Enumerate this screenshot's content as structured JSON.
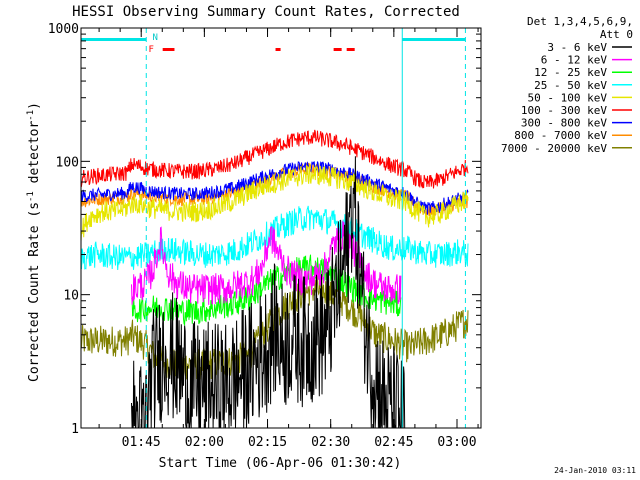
{
  "chart_data": {
    "type": "line",
    "title": "HESSI Observing Summary Count Rates, Corrected",
    "xlabel": "Start Time (06-Apr-06 01:30:42)",
    "ylabel_main": "Corrected Count Rate (s",
    "ylabel_sup1": "-1",
    "ylabel_mid": " detector",
    "ylabel_sup2": "-1",
    "ylabel_end": ")",
    "yscale": "log",
    "ylim": [
      1,
      1000
    ],
    "xlim_minutes": [
      0,
      95
    ],
    "yticks": [
      {
        "value": 1,
        "label": "1"
      },
      {
        "value": 10,
        "label": "10"
      },
      {
        "value": 100,
        "label": "100"
      },
      {
        "value": 1000,
        "label": "1000"
      }
    ],
    "xticks": [
      {
        "min": 14.3,
        "label": "01:45"
      },
      {
        "min": 29.3,
        "label": "02:00"
      },
      {
        "min": 44.3,
        "label": "02:15"
      },
      {
        "min": 59.3,
        "label": "02:30"
      },
      {
        "min": 74.3,
        "label": "02:45"
      },
      {
        "min": 89.3,
        "label": "03:00"
      }
    ],
    "legend_header": [
      "Det 1,3,4,5,6,9,",
      "Att 0"
    ],
    "flag_labels": {
      "night": "N",
      "flare": "F"
    },
    "night_intervals": [
      [
        0,
        15.5
      ],
      [
        76.3,
        91.3
      ]
    ],
    "flare_intervals": [
      [
        19.4,
        22.2
      ],
      [
        46.2,
        47.4
      ],
      [
        60.0,
        61.9
      ],
      [
        63.1,
        65.0
      ]
    ],
    "date_stamp": "24-Jan-2010 03:11",
    "series": [
      {
        "name": "3 - 6 keV",
        "color": "#000000",
        "points": [
          [
            12,
            1.2
          ],
          [
            15,
            1
          ],
          [
            17,
            2.5
          ],
          [
            20,
            4
          ],
          [
            23,
            3
          ],
          [
            26,
            2
          ],
          [
            30,
            2
          ],
          [
            34,
            2
          ],
          [
            38,
            2.5
          ],
          [
            41,
            3
          ],
          [
            44,
            4
          ],
          [
            46,
            5.5
          ],
          [
            48,
            4
          ],
          [
            50,
            5
          ],
          [
            52,
            4.5
          ],
          [
            54,
            4.5
          ],
          [
            56,
            5
          ],
          [
            58,
            5
          ],
          [
            60,
            8
          ],
          [
            62,
            15
          ],
          [
            63.5,
            25
          ],
          [
            64.5,
            55
          ],
          [
            65.5,
            28
          ],
          [
            67,
            8
          ],
          [
            69,
            3
          ],
          [
            72,
            1.6
          ],
          [
            75,
            1.3
          ],
          [
            77,
            1
          ]
        ]
      },
      {
        "name": "6 - 12 keV",
        "color": "#ff00ff",
        "points": [
          [
            12,
            11
          ],
          [
            15,
            12
          ],
          [
            17,
            15
          ],
          [
            18,
            20
          ],
          [
            19,
            25
          ],
          [
            20,
            18
          ],
          [
            21,
            14
          ],
          [
            23,
            12
          ],
          [
            26,
            11
          ],
          [
            30,
            11
          ],
          [
            34,
            11
          ],
          [
            38,
            12
          ],
          [
            41,
            13
          ],
          [
            43,
            16
          ],
          [
            45,
            28
          ],
          [
            47,
            20
          ],
          [
            49,
            15
          ],
          [
            52,
            13
          ],
          [
            55,
            13
          ],
          [
            58,
            16
          ],
          [
            60,
            24
          ],
          [
            62,
            28
          ],
          [
            64,
            24
          ],
          [
            66,
            18
          ],
          [
            68,
            14
          ],
          [
            70,
            12
          ],
          [
            73,
            11
          ],
          [
            76,
            11
          ]
        ]
      },
      {
        "name": "12 - 25 keV",
        "color": "#00ff00",
        "points": [
          [
            12,
            7.5
          ],
          [
            16,
            8
          ],
          [
            20,
            8
          ],
          [
            24,
            7.5
          ],
          [
            28,
            7.5
          ],
          [
            32,
            8
          ],
          [
            36,
            8.5
          ],
          [
            40,
            9.5
          ],
          [
            44,
            12
          ],
          [
            48,
            14
          ],
          [
            52,
            15.5
          ],
          [
            55,
            16
          ],
          [
            58,
            15
          ],
          [
            61,
            13.5
          ],
          [
            64,
            11.5
          ],
          [
            67,
            10
          ],
          [
            71,
            9
          ],
          [
            75,
            8.5
          ],
          [
            76,
            8
          ]
        ]
      },
      {
        "name": "25 - 50 keV",
        "color": "#00ffff",
        "points": [
          [
            0,
            19
          ],
          [
            4,
            20
          ],
          [
            8,
            19
          ],
          [
            12,
            19
          ],
          [
            16,
            20
          ],
          [
            20,
            22
          ],
          [
            24,
            21
          ],
          [
            28,
            20
          ],
          [
            32,
            20
          ],
          [
            36,
            21
          ],
          [
            40,
            24
          ],
          [
            44,
            28
          ],
          [
            48,
            33
          ],
          [
            52,
            37
          ],
          [
            55,
            38
          ],
          [
            58,
            36
          ],
          [
            62,
            33
          ],
          [
            66,
            29
          ],
          [
            70,
            25
          ],
          [
            74,
            22
          ],
          [
            78,
            22
          ],
          [
            82,
            20
          ],
          [
            86,
            20
          ],
          [
            90,
            21
          ],
          [
            92,
            20
          ]
        ]
      },
      {
        "name": "50 - 100 keV",
        "color": "#e6e600",
        "points": [
          [
            0,
            30
          ],
          [
            2,
            38
          ],
          [
            5,
            42
          ],
          [
            8,
            42
          ],
          [
            11,
            45
          ],
          [
            12,
            48
          ],
          [
            14,
            48
          ],
          [
            16,
            45
          ],
          [
            20,
            43
          ],
          [
            24,
            42
          ],
          [
            28,
            42
          ],
          [
            32,
            45
          ],
          [
            36,
            50
          ],
          [
            40,
            58
          ],
          [
            44,
            66
          ],
          [
            48,
            72
          ],
          [
            52,
            78
          ],
          [
            55,
            80
          ],
          [
            58,
            78
          ],
          [
            62,
            73
          ],
          [
            66,
            66
          ],
          [
            70,
            58
          ],
          [
            74,
            52
          ],
          [
            77,
            50
          ],
          [
            80,
            42
          ],
          [
            82,
            38
          ],
          [
            85,
            40
          ],
          [
            88,
            45
          ],
          [
            92,
            52
          ]
        ]
      },
      {
        "name": "100 - 300 keV",
        "color": "#ff0000",
        "points": [
          [
            0,
            75
          ],
          [
            4,
            78
          ],
          [
            8,
            80
          ],
          [
            11,
            82
          ],
          [
            12,
            95
          ],
          [
            14,
            92
          ],
          [
            16,
            88
          ],
          [
            20,
            85
          ],
          [
            24,
            84
          ],
          [
            28,
            84
          ],
          [
            32,
            88
          ],
          [
            36,
            95
          ],
          [
            40,
            108
          ],
          [
            44,
            122
          ],
          [
            48,
            138
          ],
          [
            52,
            148
          ],
          [
            55,
            152
          ],
          [
            58,
            145
          ],
          [
            62,
            135
          ],
          [
            66,
            120
          ],
          [
            70,
            105
          ],
          [
            74,
            92
          ],
          [
            77,
            86
          ],
          [
            80,
            72
          ],
          [
            82,
            68
          ],
          [
            85,
            72
          ],
          [
            88,
            80
          ],
          [
            92,
            92
          ]
        ]
      },
      {
        "name": "300 - 800 keV",
        "color": "#0000ff",
        "points": [
          [
            0,
            55
          ],
          [
            4,
            56
          ],
          [
            8,
            57
          ],
          [
            11,
            58
          ],
          [
            12,
            65
          ],
          [
            14,
            63
          ],
          [
            16,
            60
          ],
          [
            20,
            58
          ],
          [
            24,
            57
          ],
          [
            28,
            57
          ],
          [
            32,
            59
          ],
          [
            36,
            63
          ],
          [
            40,
            70
          ],
          [
            44,
            78
          ],
          [
            48,
            85
          ],
          [
            52,
            90
          ],
          [
            55,
            92
          ],
          [
            58,
            89
          ],
          [
            62,
            84
          ],
          [
            66,
            76
          ],
          [
            70,
            68
          ],
          [
            74,
            61
          ],
          [
            77,
            58
          ],
          [
            80,
            48
          ],
          [
            82,
            44
          ],
          [
            85,
            46
          ],
          [
            88,
            50
          ],
          [
            92,
            55
          ]
        ]
      },
      {
        "name": "800 - 7000 keV",
        "color": "#ff8c00",
        "points": [
          [
            0,
            50
          ],
          [
            4,
            52
          ],
          [
            8,
            53
          ],
          [
            11,
            54
          ],
          [
            12,
            58
          ],
          [
            14,
            57
          ],
          [
            16,
            55
          ],
          [
            20,
            53
          ],
          [
            24,
            52
          ],
          [
            28,
            52
          ],
          [
            32,
            54
          ],
          [
            36,
            58
          ],
          [
            40,
            64
          ],
          [
            44,
            72
          ],
          [
            48,
            80
          ],
          [
            52,
            86
          ],
          [
            55,
            88
          ],
          [
            58,
            85
          ],
          [
            62,
            80
          ],
          [
            66,
            72
          ],
          [
            70,
            64
          ],
          [
            74,
            58
          ],
          [
            77,
            55
          ],
          [
            80,
            46
          ],
          [
            82,
            42
          ],
          [
            85,
            44
          ],
          [
            88,
            47
          ],
          [
            92,
            50
          ]
        ]
      },
      {
        "name": "7000 - 20000 keV",
        "color": "#808000",
        "points": [
          [
            0,
            4.5
          ],
          [
            6,
            4.5
          ],
          [
            11,
            4.5
          ],
          [
            12,
            5
          ],
          [
            16,
            4
          ],
          [
            18,
            3.2
          ],
          [
            24,
            3
          ],
          [
            30,
            3
          ],
          [
            36,
            3.2
          ],
          [
            40,
            3.5
          ],
          [
            44,
            5.5
          ],
          [
            48,
            8
          ],
          [
            52,
            10
          ],
          [
            55,
            11
          ],
          [
            58,
            10.5
          ],
          [
            61,
            9.5
          ],
          [
            64,
            8
          ],
          [
            67,
            6.5
          ],
          [
            70,
            5
          ],
          [
            74,
            4.5
          ],
          [
            78,
            4
          ],
          [
            82,
            4.5
          ],
          [
            86,
            5
          ],
          [
            90,
            6
          ],
          [
            92,
            6.5
          ]
        ]
      }
    ]
  }
}
